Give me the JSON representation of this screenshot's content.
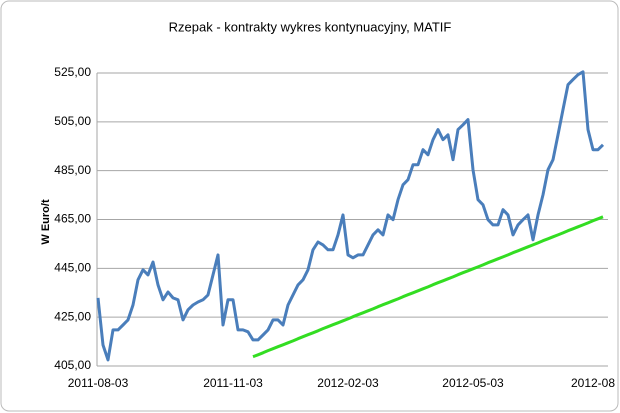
{
  "chart_data": {
    "type": "line",
    "title": "Rzepak - kontrakty wykres kontynuacyjny, MATIF",
    "y_label": "W Euro/t",
    "categories": [
      "2011-08-03",
      null,
      null,
      null,
      null,
      null,
      null,
      null,
      null,
      null,
      null,
      null,
      null,
      null,
      null,
      null,
      null,
      null,
      null,
      null,
      null,
      null,
      null,
      null,
      null,
      null,
      null,
      "2011-11-03",
      null,
      null,
      null,
      null,
      null,
      null,
      null,
      null,
      null,
      null,
      null,
      null,
      null,
      null,
      null,
      null,
      null,
      null,
      null,
      null,
      null,
      null,
      "2012-02-03",
      null,
      null,
      null,
      null,
      null,
      null,
      null,
      null,
      null,
      null,
      null,
      null,
      null,
      null,
      null,
      null,
      null,
      null,
      null,
      null,
      null,
      null,
      null,
      null,
      "2012-05-03",
      null,
      null,
      null,
      null,
      null,
      null,
      null,
      null,
      null,
      null,
      null,
      null,
      null,
      null,
      null,
      null,
      null,
      null,
      null,
      null,
      null,
      null,
      null,
      "2012-08",
      null,
      null
    ],
    "series": [
      {
        "color": "#4a7ebb",
        "values": [
          432.9,
          413.6,
          407.5,
          419.8,
          419.8,
          421.8,
          423.9,
          430,
          440.3,
          444.4,
          442.3,
          447.6,
          438.2,
          432.1,
          435.3,
          432.9,
          432.1,
          423.9,
          428,
          430,
          431.2,
          432.1,
          434.1,
          442.3,
          450.5,
          421.8,
          432.1,
          432.1,
          419.8,
          419.8,
          419,
          415.7,
          415.7,
          417.7,
          419.8,
          423.9,
          423.9,
          421.8,
          430,
          434.1,
          438.2,
          440.3,
          444.4,
          452.6,
          455.8,
          454.6,
          452.6,
          452.6,
          458.7,
          466.9,
          450.5,
          449.3,
          450.5,
          450.5,
          454.6,
          458.7,
          460.8,
          458.7,
          466.9,
          464.9,
          473.1,
          479.2,
          481.3,
          487.4,
          487.4,
          493.6,
          491.5,
          497.7,
          501.8,
          497.7,
          499.7,
          489.5,
          501.8,
          503.8,
          505.9,
          485.4,
          473.1,
          471,
          464.9,
          462.8,
          462.8,
          469,
          466.9,
          458.7,
          462.8,
          464.9,
          466.9,
          456.7,
          466.9,
          475.1,
          485.4,
          489.5,
          499.7,
          510,
          520.2,
          522.3,
          524.3,
          525.5,
          501.8,
          493.6,
          493.6,
          495.6
        ]
      },
      {
        "color": "#33dd22",
        "values": [
          null,
          null,
          null,
          null,
          null,
          null,
          null,
          null,
          null,
          null,
          null,
          null,
          null,
          null,
          null,
          null,
          null,
          null,
          null,
          null,
          null,
          null,
          null,
          null,
          null,
          null,
          null,
          null,
          null,
          null,
          null,
          408.8,
          409.6,
          410.4,
          411.3,
          412.1,
          412.9,
          413.7,
          414.5,
          415.3,
          416.2,
          417.0,
          417.8,
          418.6,
          419.4,
          420.3,
          421.1,
          421.9,
          422.7,
          423.5,
          424.3,
          425.2,
          426.0,
          426.8,
          427.6,
          428.4,
          429.3,
          430.1,
          430.9,
          431.7,
          432.5,
          433.4,
          434.2,
          435.0,
          435.8,
          436.6,
          437.4,
          438.3,
          439.1,
          439.9,
          440.7,
          441.5,
          442.4,
          443.2,
          444.0,
          444.8,
          445.6,
          446.4,
          447.3,
          448.1,
          448.9,
          449.7,
          450.5,
          451.4,
          452.2,
          453.0,
          453.8,
          454.6,
          455.4,
          456.3,
          457.1,
          457.9,
          458.7,
          459.5,
          460.4,
          461.2,
          462.0,
          462.8,
          463.6,
          464.5,
          465.3,
          466.1
        ]
      }
    ],
    "ylim": [
      405,
      525
    ],
    "yticks": [
      {
        "value": 405,
        "label": "405,00"
      },
      {
        "value": 425,
        "label": "425,00"
      },
      {
        "value": 445,
        "label": "445,00"
      },
      {
        "value": 465,
        "label": "465,00"
      },
      {
        "value": 485,
        "label": "485,00"
      },
      {
        "value": 505,
        "label": "505,00"
      },
      {
        "value": 525,
        "label": "525,00"
      }
    ],
    "grid": true
  }
}
